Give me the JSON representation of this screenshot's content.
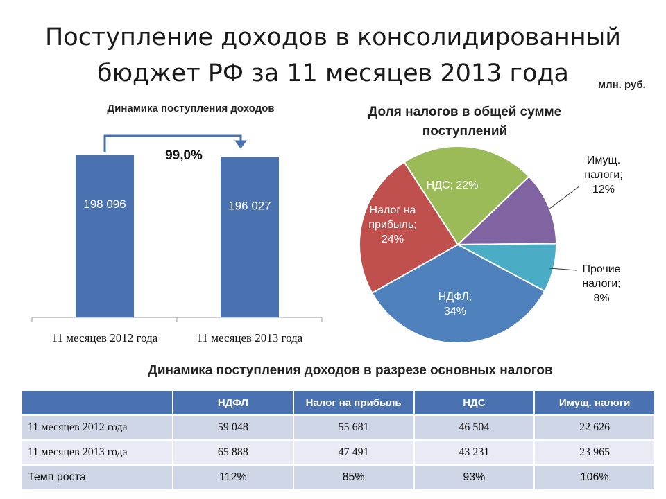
{
  "title_line1": "Поступление доходов в консолидированный",
  "title_line2": "бюджет РФ за 11 месяцев 2013 года",
  "unit": "млн. руб.",
  "chart_data": [
    {
      "type": "bar",
      "title": "Динамика поступления доходов",
      "categories": [
        "11 месяцев 2012 года",
        "11 месяцев 2013 года"
      ],
      "values": [
        198096,
        196027
      ],
      "value_labels": [
        "198 096",
        "196 027"
      ],
      "annotation": "99,0%",
      "color": "#4a72b0"
    },
    {
      "type": "pie",
      "title_line1": "Доля налогов в общей сумме",
      "title_line2": "поступлений",
      "slices": [
        {
          "label": "НДС; 22%",
          "value": 22,
          "color": "#9bbb59",
          "inside": true
        },
        {
          "label": "Имущ. налоги; 12%",
          "lines": [
            "Имущ.",
            "налоги;",
            "12%"
          ],
          "value": 12,
          "color": "#8064a2",
          "inside": false
        },
        {
          "label": "Прочие налоги; 8%",
          "lines": [
            "Прочие",
            "налоги;",
            "8%"
          ],
          "value": 8,
          "color": "#4bacc6",
          "inside": false
        },
        {
          "label": "НДФЛ; 34%",
          "lines": [
            "НДФЛ;",
            "34%"
          ],
          "value": 34,
          "color": "#4f81bd",
          "inside": true
        },
        {
          "label": "Налог на прибыль; 24%",
          "lines": [
            "Налог на",
            "прибыль;",
            "24%"
          ],
          "value": 24,
          "color": "#c0504d",
          "inside": true
        }
      ]
    },
    {
      "type": "table",
      "title": "Динамика поступления доходов  в разрезе основных налогов",
      "columns": [
        "",
        "НДФЛ",
        "Налог на прибыль",
        "НДС",
        "Имущ. налоги"
      ],
      "rows": [
        [
          "11 месяцев 2012 года",
          "59 048",
          "55 681",
          "46 504",
          "22 626"
        ],
        [
          "11 месяцев 2013 года",
          "65 888",
          "47 491",
          "43 231",
          "23 965"
        ],
        [
          "Темп роста",
          "112%",
          "85%",
          "93%",
          "106%"
        ]
      ]
    }
  ]
}
